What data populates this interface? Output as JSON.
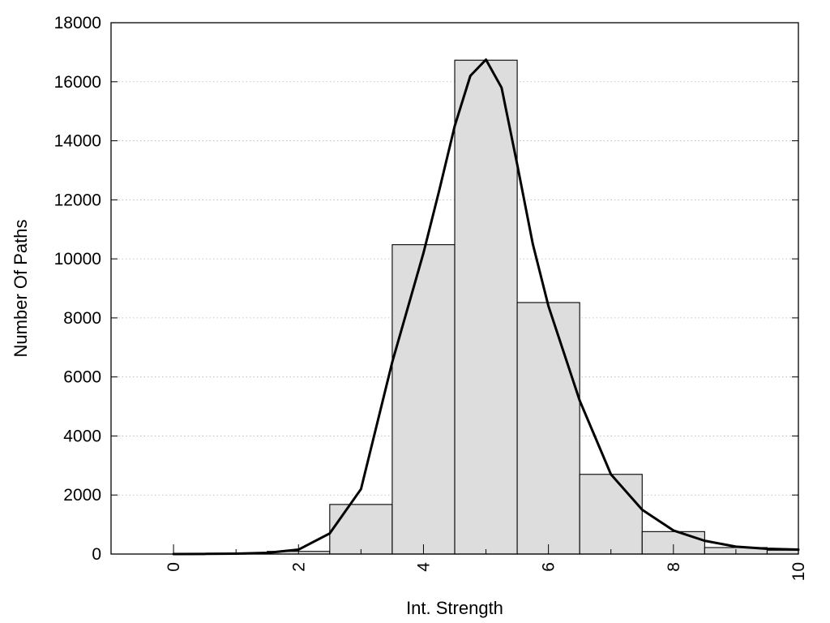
{
  "chart_data": {
    "type": "bar",
    "title": "",
    "xlabel": "Int. Strength",
    "ylabel": "Number Of Paths",
    "xlim": [
      -1,
      10
    ],
    "ylim": [
      0,
      18000
    ],
    "x_ticks": [
      0,
      2,
      4,
      6,
      8,
      10
    ],
    "y_ticks": [
      0,
      2000,
      4000,
      6000,
      8000,
      10000,
      12000,
      14000,
      16000,
      18000
    ],
    "grid": "horizontal dotted",
    "legend": "none",
    "bar_width": 1,
    "bars": [
      {
        "x": 0,
        "value": 0
      },
      {
        "x": 1,
        "value": 10
      },
      {
        "x": 2,
        "value": 90
      },
      {
        "x": 3,
        "value": 1680
      },
      {
        "x": 4,
        "value": 10480
      },
      {
        "x": 5,
        "value": 16730
      },
      {
        "x": 6,
        "value": 8520
      },
      {
        "x": 7,
        "value": 2700
      },
      {
        "x": 8,
        "value": 760
      },
      {
        "x": 9,
        "value": 220
      },
      {
        "x": 10,
        "value": 130
      }
    ],
    "curve": {
      "x": [
        0,
        0.5,
        1,
        1.5,
        2,
        2.5,
        3,
        3.5,
        4,
        4.25,
        4.5,
        4.75,
        5,
        5.25,
        5.5,
        5.75,
        6,
        6.5,
        7,
        7.5,
        8,
        8.5,
        9,
        9.5,
        10
      ],
      "y": [
        0,
        5,
        15,
        40,
        150,
        700,
        2200,
        6500,
        10200,
        12300,
        14500,
        16200,
        16750,
        15800,
        13200,
        10500,
        8400,
        5200,
        2700,
        1500,
        800,
        450,
        250,
        180,
        150
      ]
    },
    "colors": {
      "bar_fill": "#dddddd",
      "bar_edge": "#000000",
      "curve": "#000000"
    }
  }
}
